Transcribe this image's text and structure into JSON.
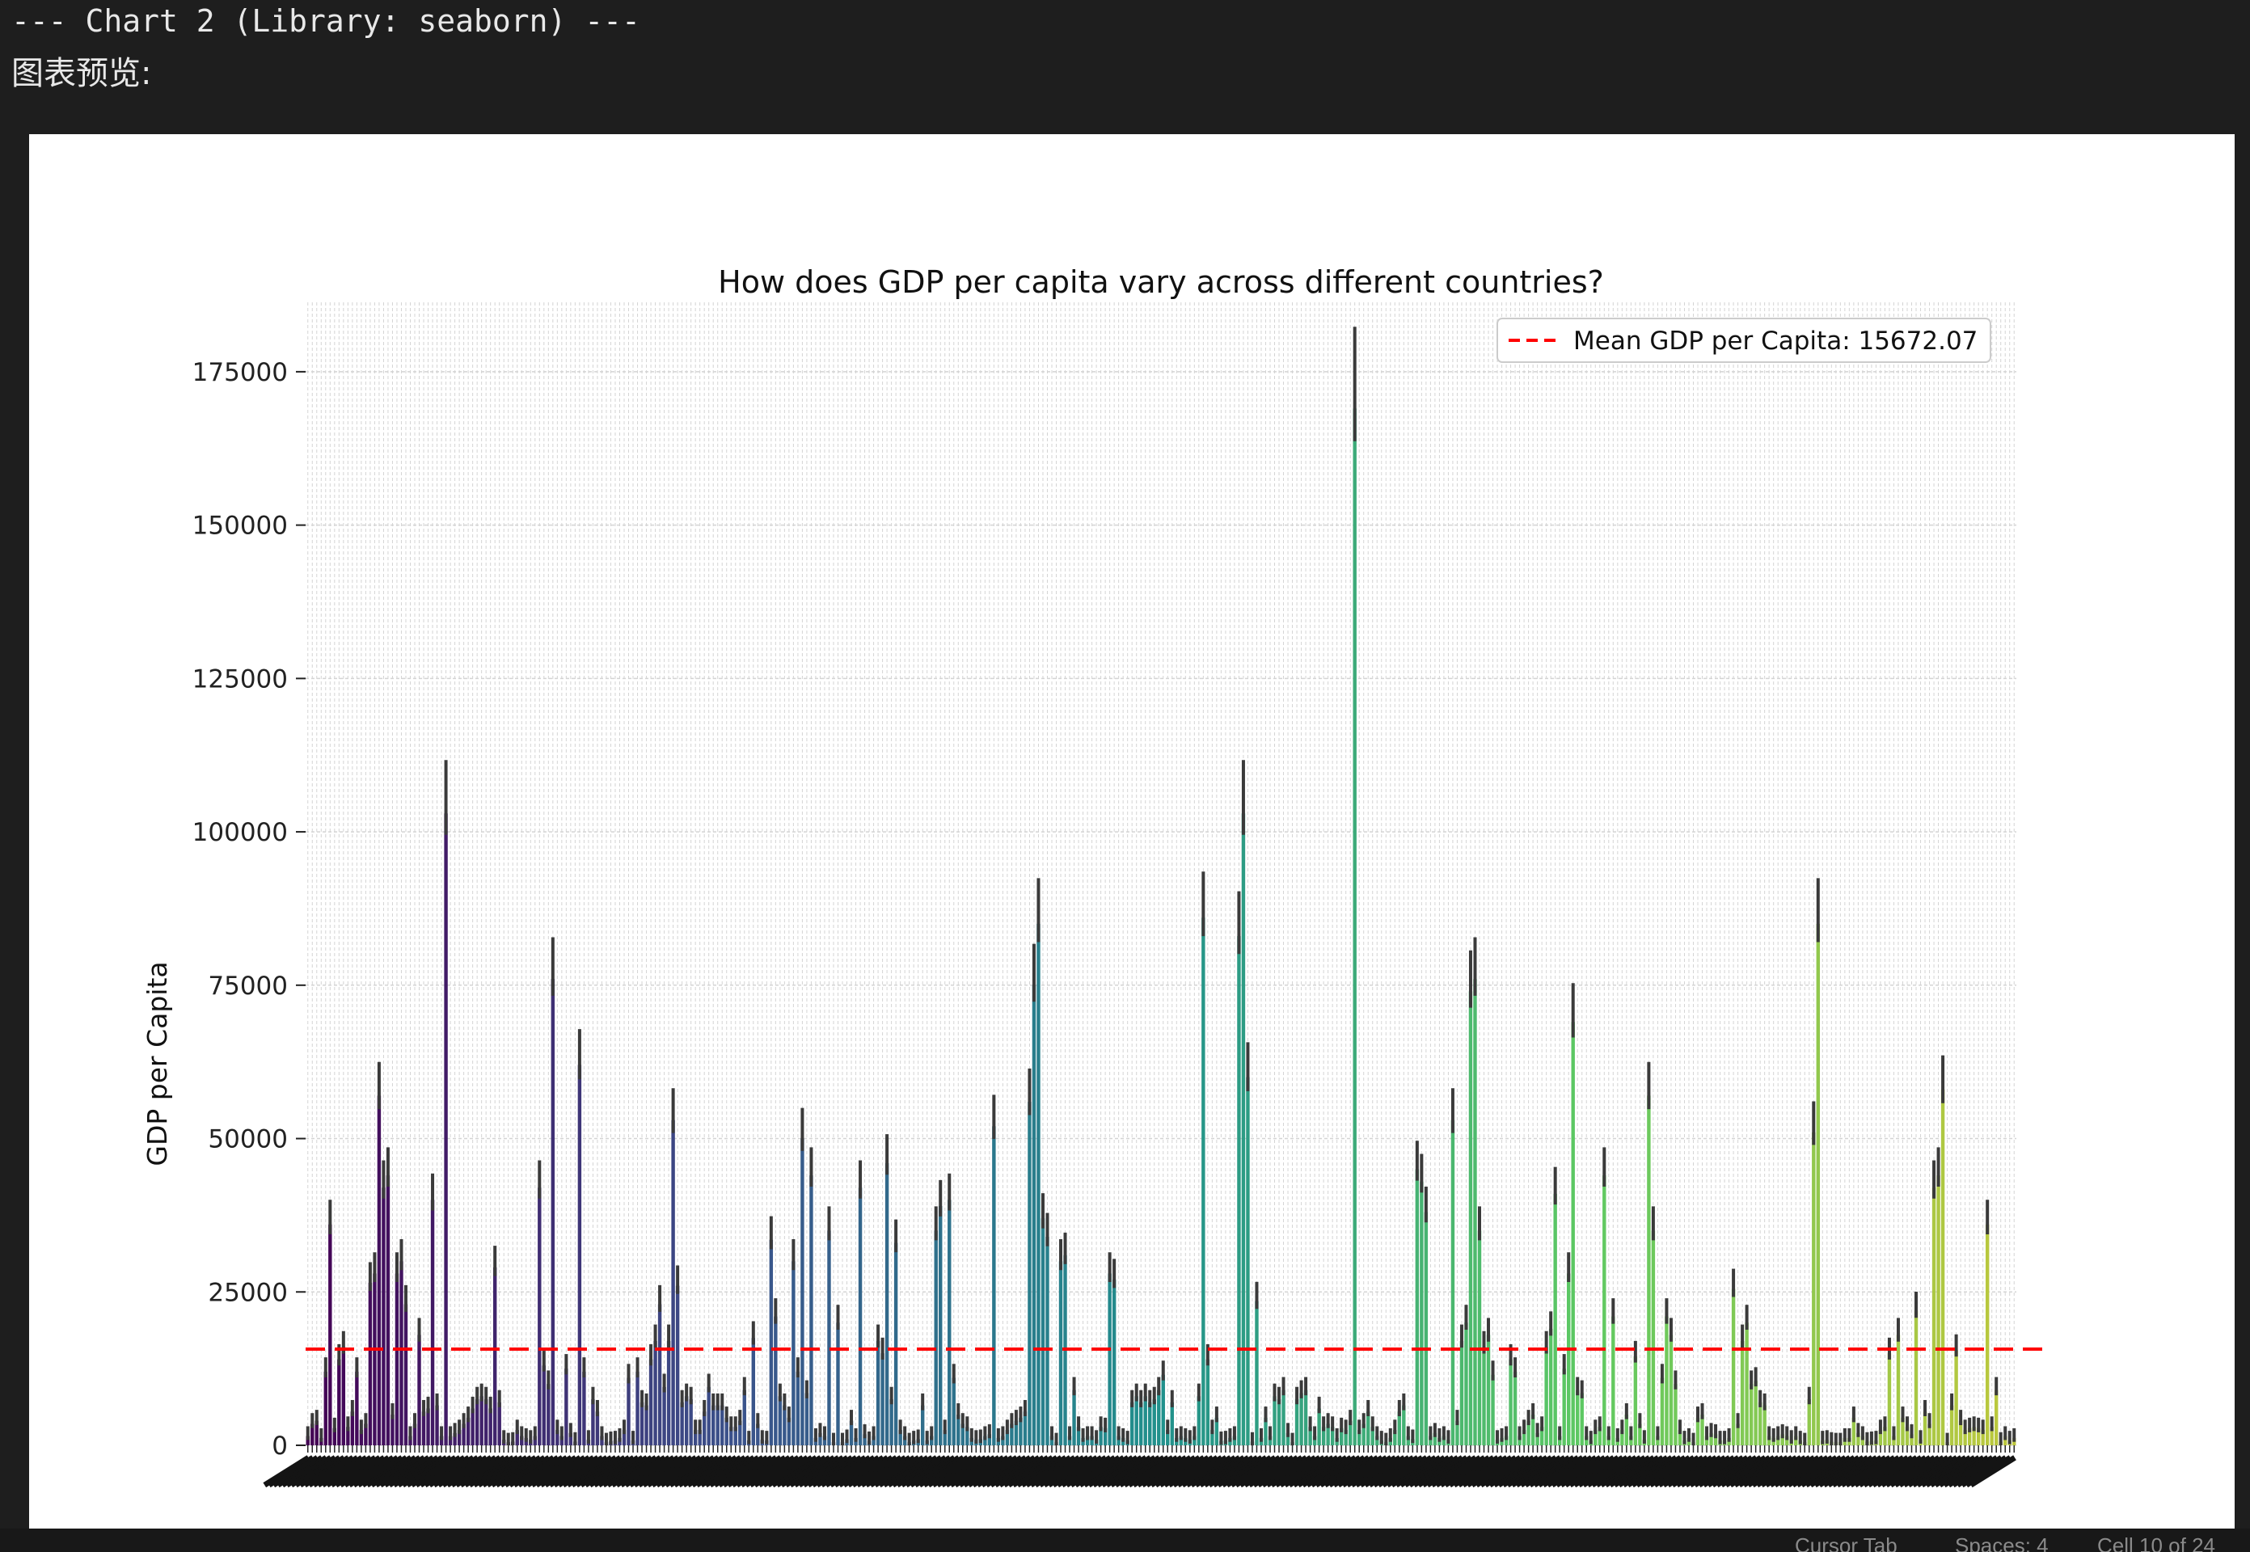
{
  "header": {
    "line": "--- Chart 2 (Library: seaborn) ---",
    "preview_label": "图表预览:"
  },
  "status_bar": {
    "cursor": "Cursor Tab",
    "spaces": "Spaces: 4",
    "cell": "Cell 10 of 24"
  },
  "chart_data": {
    "type": "bar",
    "title": "How does GDP per capita vary across different countries?",
    "xlabel": "",
    "ylabel": "GDP per Capita",
    "ylim": [
      0,
      185000
    ],
    "yticks": [
      0,
      25000,
      50000,
      75000,
      100000,
      125000,
      150000,
      175000
    ],
    "grid": true,
    "legend": {
      "placement": "top-right",
      "entries": [
        {
          "label": "Mean GDP per Capita: 15672.07",
          "color": "#ff0000",
          "style": "dashed"
        }
      ]
    },
    "mean_line": 15672.07,
    "palette": "viridis",
    "category_labels_legible": false,
    "error_bars": true,
    "values": [
      1500,
      3500,
      4000,
      1200,
      12000,
      36000,
      2800,
      14000,
      16000,
      3000,
      5500,
      12000,
      2500,
      3500,
      26500,
      28000,
      57000,
      42000,
      44000,
      5000,
      28000,
      30000,
      23000,
      1500,
      3500,
      18000,
      5500,
      6000,
      40000,
      6500,
      1500,
      103000,
      1500,
      2000,
      2500,
      3500,
      4500,
      6000,
      7500,
      8000,
      7500,
      6000,
      29000,
      7000,
      900,
      500,
      600,
      2500,
      1500,
      1200,
      900,
      1500,
      42000,
      13000,
      10000,
      76000,
      2500,
      1500,
      12500,
      2000,
      600,
      62000,
      12000,
      900,
      7500,
      5500,
      1500,
      500,
      700,
      800,
      1200,
      2500,
      11000,
      800,
      12000,
      7000,
      6500,
      14000,
      17000,
      23000,
      9500,
      17000,
      53000,
      26000,
      7000,
      8000,
      7500,
      2500,
      2500,
      5500,
      9500,
      6500,
      6500,
      6500,
      4500,
      3000,
      3000,
      4000,
      9000,
      800,
      17500,
      3500,
      900,
      800,
      33500,
      21000,
      8000,
      6500,
      4500,
      30000,
      12000,
      50000,
      8500,
      44000,
      1200,
      2000,
      1500,
      35000,
      500,
      20000,
      500,
      1000,
      4000,
      1200,
      42000,
      1800,
      700,
      1500,
      17000,
      15000,
      46000,
      7500,
      33000,
      2500,
      1500,
      500,
      800,
      1000,
      6500,
      800,
      1500,
      35000,
      39000,
      2500,
      40000,
      11000,
      5000,
      3500,
      3000,
      1200,
      900,
      1000,
      1500,
      1800,
      52000,
      1200,
      1500,
      2500,
      3500,
      4000,
      4500,
      5500,
      56000,
      75000,
      85000,
      37000,
      34000,
      1500,
      500,
      30000,
      31000,
      1500,
      9000,
      3000,
      1200,
      1500,
      1500,
      900,
      3000,
      2800,
      28000,
      27000,
      1500,
      1200,
      800,
      7000,
      8000,
      7000,
      8000,
      7000,
      7500,
      9000,
      11500,
      2500,
      7000,
      1200,
      1500,
      1200,
      900,
      1500,
      8000,
      86000,
      14000,
      2500,
      4500,
      700,
      800,
      1200,
      1500,
      83000,
      103000,
      60000,
      600,
      23500,
      1200,
      4500,
      1500,
      8000,
      7500,
      9000,
      2000,
      500,
      7500,
      8500,
      9000,
      3000,
      1500,
      6000,
      3000,
      3500,
      3000,
      1200,
      2800,
      2500,
      4000,
      169000,
      2500,
      3500,
      5500,
      3000,
      1500,
      800,
      500,
      1200,
      2500,
      5500,
      6500,
      1500,
      1000,
      45000,
      43000,
      38000,
      1500,
      2000,
      1200,
      1500,
      900,
      53000,
      4000,
      17000,
      20000,
      74000,
      76000,
      35000,
      16000,
      18000,
      11500,
      900,
      1200,
      1500,
      14000,
      12000,
      1500,
      2500,
      4000,
      5000,
      2000,
      3000,
      16000,
      19000,
      41000,
      1500,
      12500,
      28000,
      69000,
      9000,
      8500,
      1500,
      800,
      2500,
      3000,
      44000,
      1500,
      21000,
      1200,
      2500,
      5000,
      1500,
      14500,
      3500,
      900,
      57000,
      35000,
      1500,
      11000,
      21000,
      18000,
      10000,
      2500,
      800,
      1200,
      500,
      4500,
      5000,
      1500,
      2000,
      1800,
      800,
      800,
      1200,
      25500,
      3500,
      17000,
      20000,
      10000,
      10500,
      7000,
      6500,
      1500,
      1200,
      1500,
      1800,
      1500,
      900,
      1500,
      800,
      500,
      7500,
      51000,
      85000,
      800,
      900,
      600,
      500,
      500,
      1200,
      1200,
      4500,
      2000,
      1500,
      600,
      700,
      800,
      2500,
      3000,
      15000,
      1500,
      18000,
      4500,
      3000,
      1800,
      22000,
      900,
      5500,
      3500,
      42000,
      44000,
      58000,
      500,
      6500,
      15500,
      4000,
      2500,
      2800,
      3000,
      2800,
      2500,
      36000,
      3000,
      9000,
      600,
      1500,
      800,
      1200
    ]
  }
}
